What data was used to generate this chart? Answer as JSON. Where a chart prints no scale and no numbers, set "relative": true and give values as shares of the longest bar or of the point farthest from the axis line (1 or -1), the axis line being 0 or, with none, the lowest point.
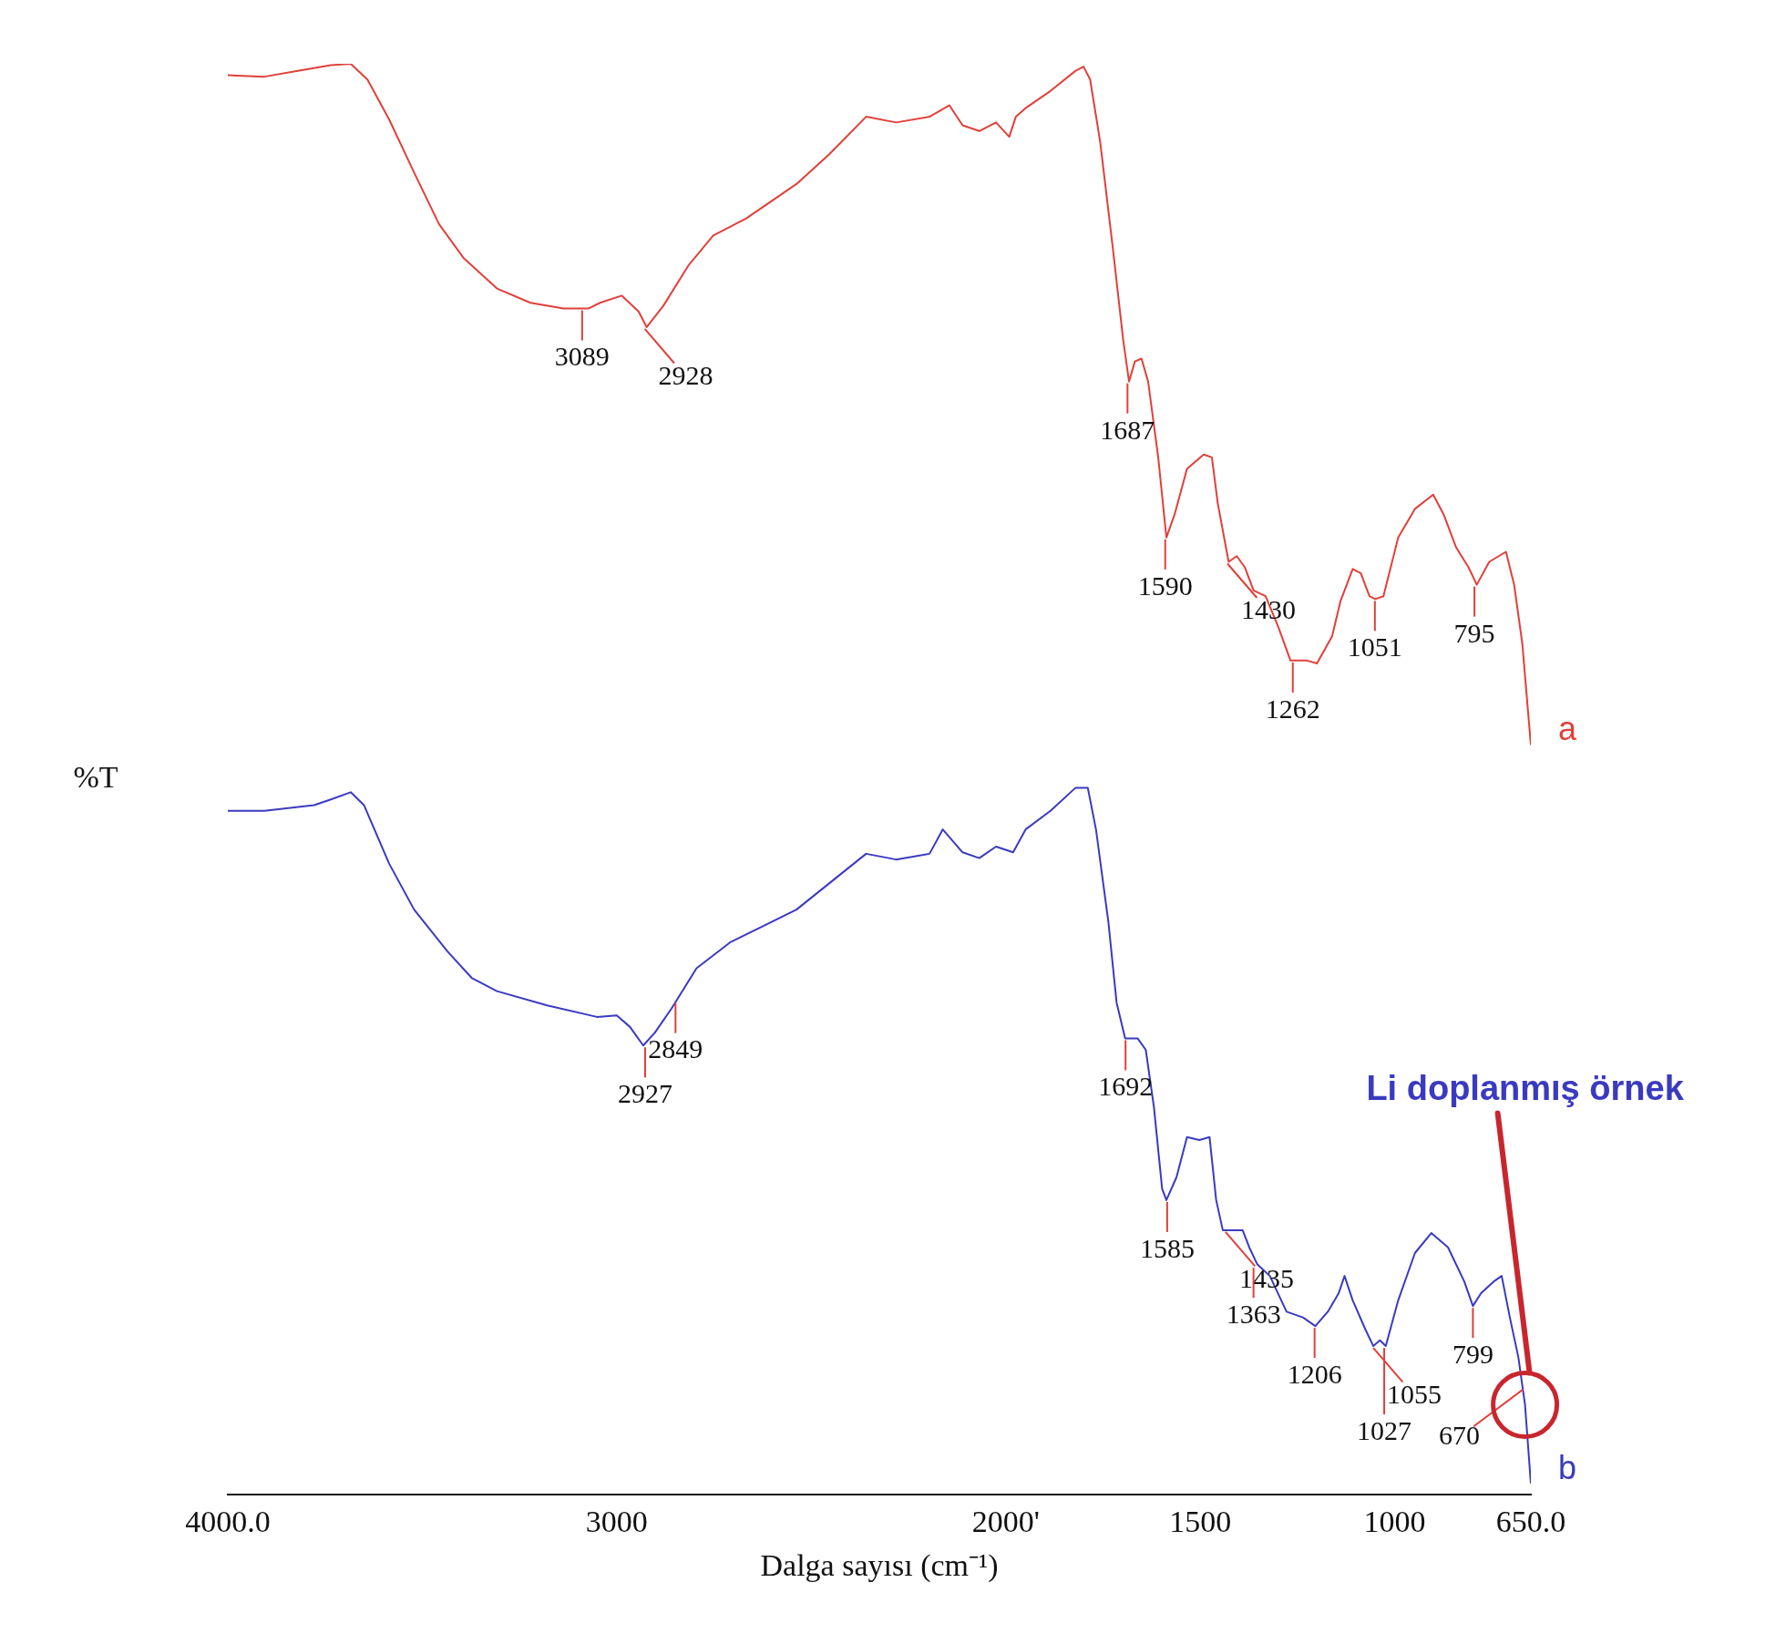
{
  "chart_data": {
    "type": "line",
    "relative": true,
    "xlabel": "Dalga sayısı (cm⁻¹)",
    "ylabel": "%T",
    "xlim": [
      4000,
      650
    ],
    "xticks": [
      {
        "value": 4000,
        "label": "4000.0"
      },
      3000,
      {
        "value": 2000,
        "label": "2000'"
      },
      1500,
      1000,
      {
        "value": 650,
        "label": "650.0"
      }
    ],
    "grid": false,
    "legend": false,
    "series": [
      {
        "name": "a",
        "color": "#e0403a",
        "x": [
          4000,
          3906,
          3820,
          3735,
          3684,
          3641,
          3585,
          3521,
          3457,
          3393,
          3308,
          3222,
          3137,
          3073,
          3043,
          2987,
          2944,
          2923,
          2880,
          2816,
          2752,
          2667,
          2538,
          2453,
          2359,
          2282,
          2196,
          2145,
          2111,
          2068,
          2025,
          1991,
          1974,
          1949,
          1885,
          1821,
          1800,
          1783,
          1757,
          1725,
          1698,
          1683,
          1668,
          1651,
          1634,
          1608,
          1587,
          1566,
          1534,
          1491,
          1470,
          1455,
          1427,
          1406,
          1385,
          1363,
          1332,
          1300,
          1268,
          1225,
          1200,
          1161,
          1140,
          1108,
          1087,
          1065,
          1050,
          1029,
          991,
          948,
          901,
          874,
          842,
          810,
          789,
          757,
          714,
          693,
          672,
          650
        ],
        "values": [
          0.992,
          0.991,
          0.995,
          0.999,
          1.0,
          0.989,
          0.961,
          0.924,
          0.888,
          0.864,
          0.843,
          0.833,
          0.829,
          0.829,
          0.833,
          0.838,
          0.827,
          0.816,
          0.831,
          0.859,
          0.88,
          0.892,
          0.916,
          0.937,
          0.963,
          0.959,
          0.963,
          0.971,
          0.957,
          0.953,
          0.959,
          0.949,
          0.963,
          0.969,
          0.981,
          0.995,
          0.998,
          0.989,
          0.945,
          0.872,
          0.807,
          0.778,
          0.792,
          0.794,
          0.778,
          0.725,
          0.669,
          0.685,
          0.717,
          0.727,
          0.725,
          0.693,
          0.652,
          0.656,
          0.648,
          0.632,
          0.628,
          0.607,
          0.583,
          0.583,
          0.581,
          0.6,
          0.624,
          0.647,
          0.644,
          0.628,
          0.626,
          0.628,
          0.669,
          0.689,
          0.699,
          0.685,
          0.662,
          0.648,
          0.636,
          0.652,
          0.659,
          0.636,
          0.595,
          0.524
        ]
      },
      {
        "name": "b",
        "color": "#3a3ac0",
        "x": [
          4000,
          3906,
          3778,
          3735,
          3684,
          3650,
          3585,
          3521,
          3436,
          3372,
          3308,
          3179,
          3051,
          3000,
          2966,
          2932,
          2902,
          2859,
          2795,
          2709,
          2538,
          2359,
          2282,
          2196,
          2162,
          2111,
          2068,
          2025,
          1981,
          1949,
          1885,
          1821,
          1789,
          1768,
          1736,
          1715,
          1693,
          1661,
          1640,
          1619,
          1598,
          1587,
          1561,
          1534,
          1502,
          1476,
          1459,
          1442,
          1417,
          1391,
          1374,
          1353,
          1321,
          1278,
          1236,
          1204,
          1172,
          1144,
          1129,
          1108,
          1076,
          1055,
          1038,
          1023,
          991,
          948,
          906,
          863,
          821,
          799,
          778,
          746,
          725,
          704,
          682,
          665,
          650
        ],
        "values": [
          0.478,
          0.478,
          0.482,
          0.486,
          0.491,
          0.482,
          0.441,
          0.409,
          0.38,
          0.361,
          0.352,
          0.342,
          0.334,
          0.335,
          0.327,
          0.314,
          0.323,
          0.34,
          0.368,
          0.386,
          0.409,
          0.448,
          0.444,
          0.448,
          0.465,
          0.449,
          0.445,
          0.453,
          0.449,
          0.465,
          0.478,
          0.494,
          0.494,
          0.465,
          0.4,
          0.344,
          0.319,
          0.319,
          0.311,
          0.271,
          0.214,
          0.206,
          0.222,
          0.25,
          0.248,
          0.25,
          0.206,
          0.185,
          0.185,
          0.185,
          0.173,
          0.161,
          0.153,
          0.128,
          0.124,
          0.118,
          0.128,
          0.141,
          0.153,
          0.136,
          0.116,
          0.104,
          0.108,
          0.104,
          0.136,
          0.169,
          0.183,
          0.173,
          0.149,
          0.132,
          0.141,
          0.149,
          0.153,
          0.124,
          0.096,
          0.063,
          0.008
        ]
      }
    ],
    "annotations": [
      {
        "text": "3089",
        "x": 3089,
        "y": 0.829
      },
      {
        "text": "2928",
        "x": 2928,
        "y": 0.816
      },
      {
        "text": "1687",
        "x": 1687,
        "y": 0.778
      },
      {
        "text": "1590",
        "x": 1590,
        "y": 0.669
      },
      {
        "text": "1430",
        "x": 1430,
        "y": 0.652
      },
      {
        "text": "1262",
        "x": 1262,
        "y": 0.583
      },
      {
        "text": "1051",
        "x": 1051,
        "y": 0.626
      },
      {
        "text": "795",
        "x": 795,
        "y": 0.636
      },
      {
        "text": "2927",
        "x": 2927,
        "y": 0.314
      },
      {
        "text": "2849",
        "x": 2849,
        "y": 0.345
      },
      {
        "text": "1692",
        "x": 1692,
        "y": 0.319
      },
      {
        "text": "1585",
        "x": 1585,
        "y": 0.206
      },
      {
        "text": "1435",
        "x": 1435,
        "y": 0.185
      },
      {
        "text": "1363",
        "x": 1363,
        "y": 0.16
      },
      {
        "text": "1206",
        "x": 1206,
        "y": 0.118
      },
      {
        "text": "1055",
        "x": 1055,
        "y": 0.104
      },
      {
        "text": "1027",
        "x": 1027,
        "y": 0.104
      },
      {
        "text": "799",
        "x": 799,
        "y": 0.132
      },
      {
        "text": "670",
        "x": 670,
        "y": 0.075
      },
      "Li doplanmış örnek"
    ]
  }
}
